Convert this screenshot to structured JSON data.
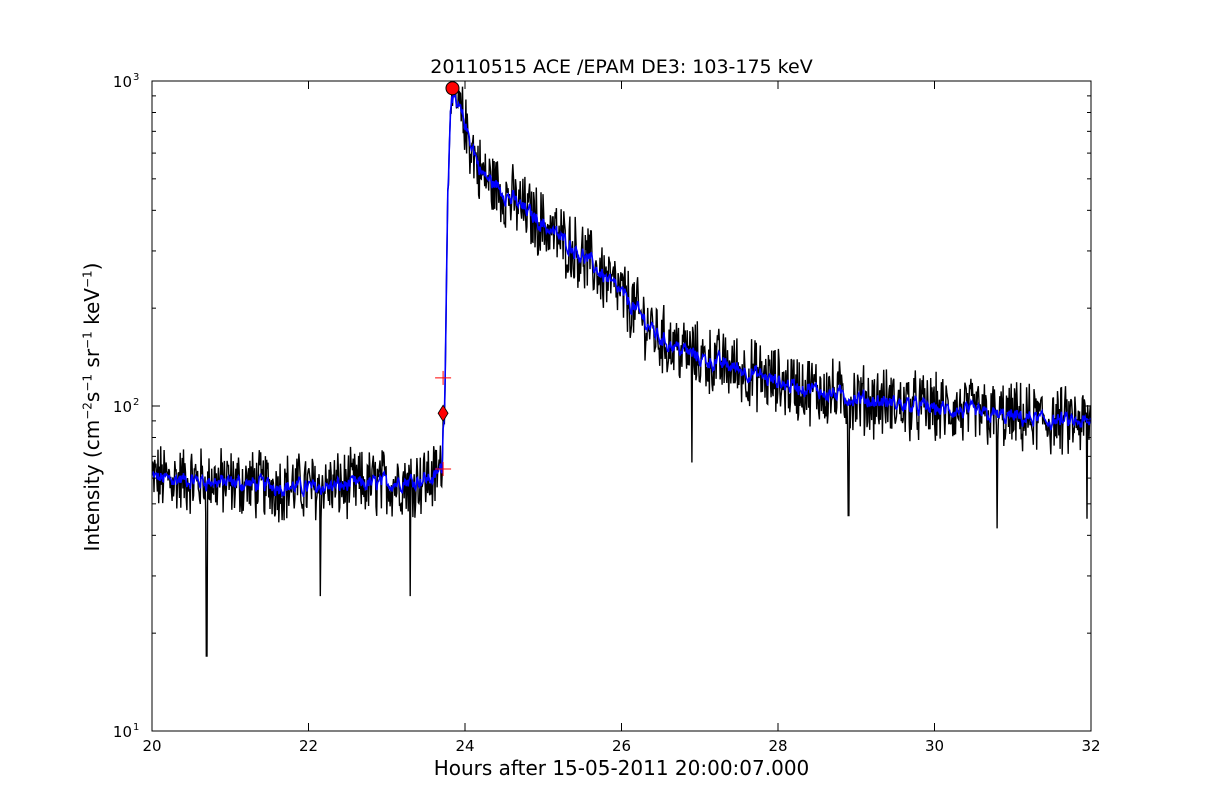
{
  "chart_data": {
    "type": "line",
    "title": "20110515 ACE /EPAM DE3: 103-175 keV",
    "xlabel": "Hours after 15-05-2011 20:00:07.000",
    "ylabel": {
      "prefix": "Intensity (cm",
      "exp1": "−2",
      "mid1": "s",
      "exp2": "−1",
      "mid2": "sr",
      "exp3": "−1",
      "mid3": "keV",
      "exp4": "−1",
      "suffix": ")"
    },
    "xlim": [
      20,
      32
    ],
    "ylim": [
      10,
      1000
    ],
    "yscale": "log",
    "x_ticks": [
      20,
      22,
      24,
      26,
      28,
      30,
      32
    ],
    "y_ticks": [
      {
        "value": 10,
        "base": "10",
        "exp": "1"
      },
      {
        "value": 100,
        "base": "10",
        "exp": "2"
      },
      {
        "value": 1000,
        "base": "10",
        "exp": "3"
      }
    ],
    "grid": false,
    "series": [
      {
        "role": "raw",
        "color": "#000000",
        "profile": [
          [
            20.0,
            60
          ],
          [
            21.0,
            58
          ],
          [
            22.0,
            56
          ],
          [
            23.0,
            58
          ],
          [
            23.6,
            60
          ],
          [
            23.7,
            65
          ],
          [
            23.74,
            100
          ],
          [
            23.78,
            450
          ],
          [
            23.82,
            880
          ],
          [
            23.9,
            840
          ],
          [
            24.0,
            720
          ],
          [
            24.2,
            520
          ],
          [
            24.5,
            450
          ],
          [
            25.0,
            360
          ],
          [
            25.5,
            290
          ],
          [
            26.0,
            220
          ],
          [
            26.5,
            160
          ],
          [
            27.0,
            140
          ],
          [
            27.5,
            130
          ],
          [
            28.0,
            118
          ],
          [
            29.0,
            105
          ],
          [
            30.0,
            98
          ],
          [
            31.0,
            92
          ],
          [
            32.0,
            88
          ]
        ],
        "min_values": [
          [
            20.7,
            17
          ],
          [
            22.15,
            26
          ],
          [
            23.3,
            26
          ],
          [
            26.9,
            67
          ],
          [
            28.9,
            46
          ],
          [
            30.8,
            42
          ],
          [
            31.95,
            45
          ]
        ]
      },
      {
        "role": "smoothed",
        "color": "#0000ff",
        "profile": [
          [
            20.0,
            60
          ],
          [
            21.0,
            58
          ],
          [
            22.0,
            56
          ],
          [
            23.0,
            58
          ],
          [
            23.6,
            60
          ],
          [
            23.7,
            65
          ],
          [
            23.74,
            100
          ],
          [
            23.78,
            450
          ],
          [
            23.82,
            880
          ],
          [
            23.9,
            840
          ],
          [
            24.0,
            720
          ],
          [
            24.2,
            520
          ],
          [
            24.5,
            450
          ],
          [
            25.0,
            360
          ],
          [
            25.5,
            290
          ],
          [
            26.0,
            220
          ],
          [
            26.5,
            160
          ],
          [
            27.0,
            140
          ],
          [
            27.5,
            130
          ],
          [
            28.0,
            118
          ],
          [
            29.0,
            105
          ],
          [
            30.0,
            98
          ],
          [
            31.0,
            92
          ],
          [
            32.0,
            88
          ]
        ]
      }
    ],
    "markers": [
      {
        "kind": "circle",
        "x": 23.84,
        "y": 950,
        "color": "#ff0000"
      },
      {
        "kind": "diamond",
        "x": 23.72,
        "y": 95,
        "color": "#ff0000"
      },
      {
        "kind": "plus",
        "x": 23.72,
        "y": 122,
        "color": "#ff0000"
      },
      {
        "kind": "plus",
        "x": 23.72,
        "y": 64,
        "color": "#ff0000"
      }
    ]
  }
}
